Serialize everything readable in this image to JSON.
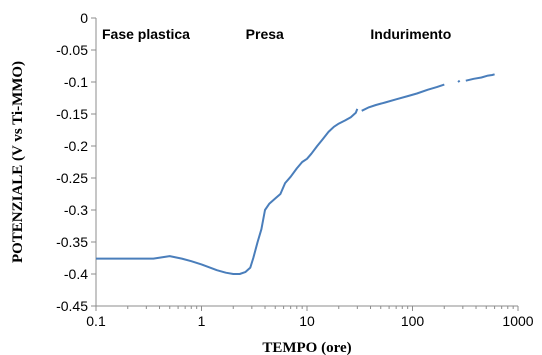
{
  "chart_data": {
    "type": "line",
    "title": "",
    "xlabel": "TEMPO (ore)",
    "ylabel": "POTENZIALE (V vs Ti-MMO)",
    "x_scale": "log",
    "xlim": [
      0.1,
      1000
    ],
    "ylim": [
      -0.45,
      0
    ],
    "grid": false,
    "legend": "none",
    "x_ticks": [
      0.1,
      1,
      10,
      100,
      1000
    ],
    "x_tick_labels": [
      "0.1",
      "1",
      "10",
      "100",
      "1000"
    ],
    "y_ticks": [
      0,
      -0.05,
      -0.1,
      -0.15,
      -0.2,
      -0.25,
      -0.3,
      -0.35,
      -0.4,
      -0.45
    ],
    "y_tick_labels": [
      "0",
      "-0.05",
      "-0.1",
      "-0.15",
      "-0.2",
      "-0.25",
      "-0.3",
      "-0.35",
      "-0.4",
      "-0.45"
    ],
    "series_color": "#4a7ebb",
    "annotations": [
      {
        "text": "Fase plastica",
        "x": 0.1,
        "y": -0.025
      },
      {
        "text": "Presa",
        "x": 2.3,
        "y": -0.025
      },
      {
        "text": "Indurimento",
        "x": 35,
        "y": -0.025
      }
    ],
    "segments": [
      [
        [
          0.1,
          -0.376
        ],
        [
          0.2,
          -0.376
        ],
        [
          0.35,
          -0.376
        ],
        [
          0.5,
          -0.372
        ],
        [
          0.65,
          -0.376
        ],
        [
          0.8,
          -0.38
        ],
        [
          1.0,
          -0.385
        ],
        [
          1.2,
          -0.39
        ],
        [
          1.4,
          -0.394
        ],
        [
          1.7,
          -0.398
        ],
        [
          2.0,
          -0.4
        ],
        [
          2.3,
          -0.4
        ],
        [
          2.6,
          -0.397
        ],
        [
          2.9,
          -0.39
        ],
        [
          3.1,
          -0.375
        ],
        [
          3.4,
          -0.35
        ],
        [
          3.7,
          -0.33
        ],
        [
          4.0,
          -0.3
        ],
        [
          4.4,
          -0.29
        ],
        [
          5.0,
          -0.282
        ],
        [
          5.6,
          -0.275
        ],
        [
          6.2,
          -0.258
        ],
        [
          7.0,
          -0.248
        ],
        [
          8.0,
          -0.235
        ],
        [
          9.0,
          -0.225
        ],
        [
          10.0,
          -0.22
        ],
        [
          11.0,
          -0.212
        ],
        [
          12.5,
          -0.2
        ],
        [
          14.0,
          -0.19
        ],
        [
          16.0,
          -0.178
        ],
        [
          18.0,
          -0.17
        ],
        [
          20.0,
          -0.165
        ],
        [
          23.0,
          -0.16
        ],
        [
          26.0,
          -0.155
        ],
        [
          29.0,
          -0.148
        ],
        [
          30.0,
          -0.142
        ]
      ],
      [
        [
          33,
          -0.145
        ],
        [
          38,
          -0.14
        ],
        [
          45,
          -0.136
        ],
        [
          55,
          -0.132
        ],
        [
          70,
          -0.127
        ],
        [
          90,
          -0.122
        ],
        [
          110,
          -0.118
        ],
        [
          140,
          -0.112
        ],
        [
          170,
          -0.108
        ],
        [
          200,
          -0.104
        ]
      ],
      [
        [
          270,
          -0.1
        ],
        [
          280,
          -0.098
        ]
      ],
      [
        [
          320,
          -0.098
        ],
        [
          380,
          -0.095
        ],
        [
          450,
          -0.093
        ],
        [
          520,
          -0.09
        ],
        [
          570,
          -0.089
        ],
        [
          600,
          -0.088
        ]
      ]
    ]
  }
}
